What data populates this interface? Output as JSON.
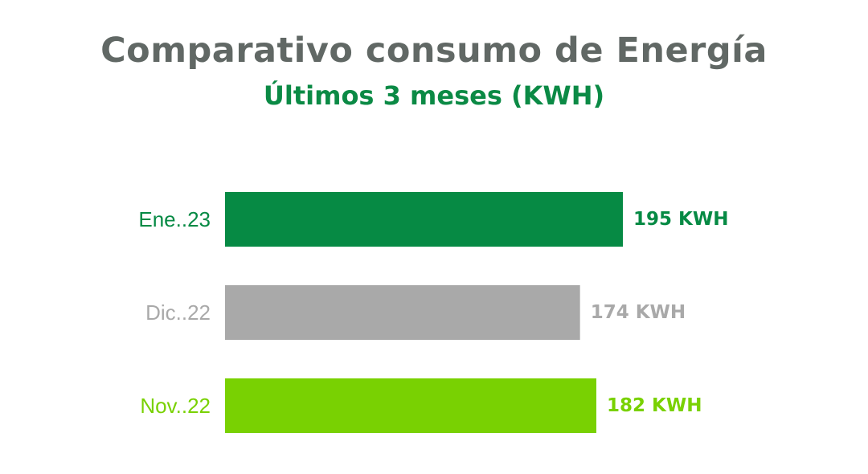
{
  "chart_data": {
    "type": "bar",
    "orientation": "horizontal",
    "title": "Comparativo consumo de Energía",
    "subtitle": "Últimos 3 meses (KWH)",
    "categories": [
      "Ene..23",
      "Dic..22",
      "Nov..22"
    ],
    "values": [
      195,
      174,
      182
    ],
    "value_labels": [
      "195 KWH",
      "174 KWH",
      "182 KWH"
    ],
    "colors": [
      "#068a44",
      "#a9a9a9",
      "#79d102"
    ],
    "xlim": [
      0,
      195
    ],
    "grid": false,
    "legend": "none"
  },
  "colors": {
    "title": "#616865",
    "subtitle": "#0b8a45"
  }
}
